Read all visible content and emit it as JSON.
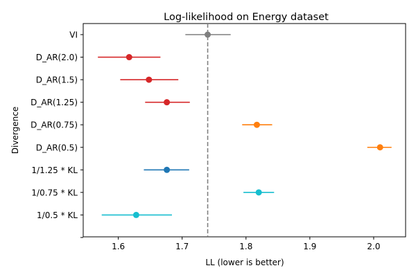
{
  "chart_data": {
    "type": "scatter",
    "title": "Log-likelihood on Energy dataset",
    "xlabel": "LL (lower is better)",
    "ylabel": "Divergence",
    "xlim": [
      1.545,
      2.05
    ],
    "xticks": [
      1.6,
      1.7,
      1.8,
      1.9,
      2.0
    ],
    "xtick_labels": [
      "1.6",
      "1.7",
      "1.8",
      "1.9",
      "2.0"
    ],
    "categories": [
      "VI",
      "D_AR(2.0)",
      "D_AR(1.5)",
      "D_AR(1.25)",
      "D_AR(0.75)",
      "D_AR(0.5)",
      "1/1.25 * KL",
      "1/0.75 * KL",
      "1/0.5 * KL",
      ""
    ],
    "reference_line": {
      "x": 1.74,
      "style": "dashed",
      "color": "#808080"
    },
    "grid": false,
    "points": [
      {
        "label": "VI",
        "value": 1.74,
        "low": 1.705,
        "high": 1.776,
        "color": "#7f7f7f"
      },
      {
        "label": "D_AR(2.0)",
        "value": 1.617,
        "low": 1.568,
        "high": 1.666,
        "color": "#d62728"
      },
      {
        "label": "D_AR(1.5)",
        "value": 1.648,
        "low": 1.603,
        "high": 1.694,
        "color": "#d62728"
      },
      {
        "label": "D_AR(1.25)",
        "value": 1.676,
        "low": 1.642,
        "high": 1.712,
        "color": "#d62728"
      },
      {
        "label": "D_AR(0.75)",
        "value": 1.817,
        "low": 1.794,
        "high": 1.841,
        "color": "#ff7f0e"
      },
      {
        "label": "D_AR(0.5)",
        "value": 2.01,
        "low": 1.99,
        "high": 2.028,
        "color": "#ff7f0e"
      },
      {
        "label": "1/1.25 * KL",
        "value": 1.676,
        "low": 1.64,
        "high": 1.711,
        "color": "#1f77b4"
      },
      {
        "label": "1/0.75 * KL",
        "value": 1.82,
        "low": 1.796,
        "high": 1.844,
        "color": "#17becf"
      },
      {
        "label": "1/0.5 * KL",
        "value": 1.628,
        "low": 1.574,
        "high": 1.684,
        "color": "#17becf"
      }
    ]
  }
}
